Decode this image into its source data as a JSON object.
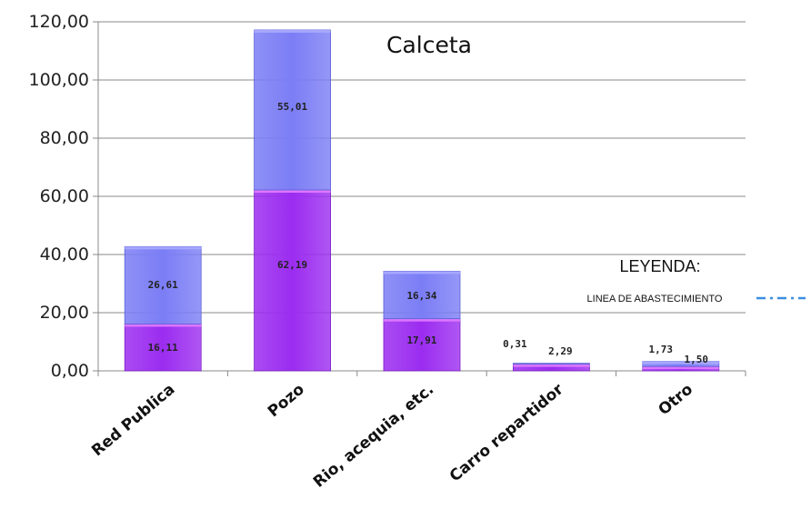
{
  "chart_data": {
    "type": "bar",
    "stacked": true,
    "title": "Calceta",
    "categories": [
      "Red Publica",
      "Pozo",
      "Rio, acequia, etc.",
      "Carro repartidor",
      "Otro"
    ],
    "series": [
      {
        "values": [
          16.11,
          62.19,
          17.91,
          2.29,
          1.5
        ],
        "labels": [
          "16,11",
          "62,19",
          "17,91",
          "2,29",
          "1,50"
        ],
        "color": "#9b2cf0"
      },
      {
        "values": [
          26.61,
          55.01,
          16.34,
          0.31,
          1.73
        ],
        "labels": [
          "26,61",
          "55,01",
          "16,34",
          "0,31",
          "1,73"
        ],
        "color": "#7b7df5"
      }
    ],
    "ylim": [
      0,
      120
    ],
    "yticks": [
      0,
      20,
      40,
      60,
      80,
      100,
      120
    ],
    "ytick_labels": [
      "0,00",
      "20,00",
      "40,00",
      "60,00",
      "80,00",
      "100,00",
      "120,00"
    ],
    "grid": true
  },
  "legend": {
    "title": "LEYENDA:",
    "item_label": "LINEA DE ABASTECIMIENTO",
    "item_color": "#3a8ee0"
  }
}
